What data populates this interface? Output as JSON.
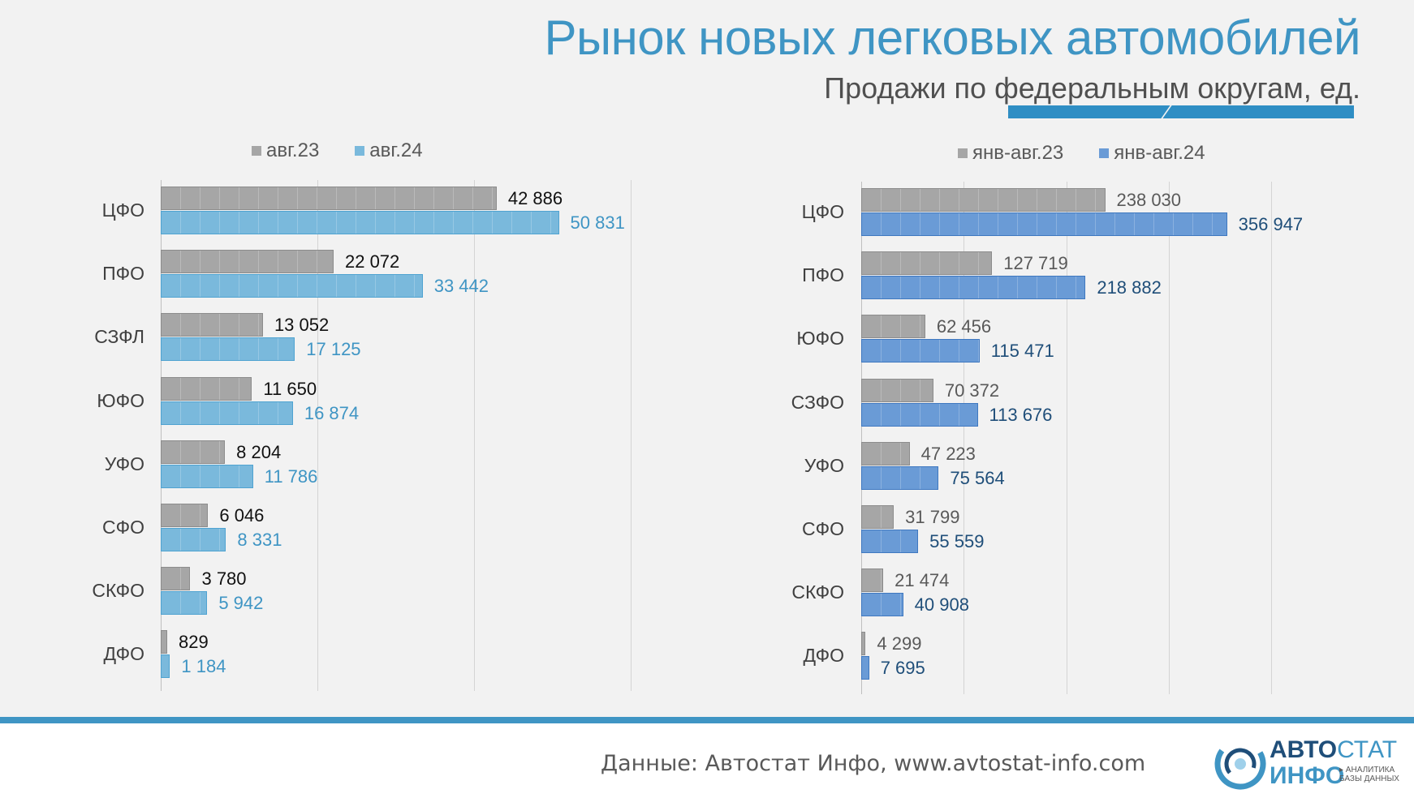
{
  "header": {
    "title": "Рынок новых легковых автомобилей",
    "subtitle": "Продажи по федеральным округам, ед."
  },
  "footer": {
    "source": "Данные: Автостат Инфо, www.avtostat-info.com",
    "logo_word1_bold": "АВТО",
    "logo_word1_light": "СТАТ",
    "logo_word2": "ИНФО",
    "logo_sub_line1": "▸ АНАЛИТИКА",
    "logo_sub_line2": "БАЗЫ ДАННЫХ"
  },
  "chart_data": [
    {
      "type": "bar",
      "orientation": "horizontal",
      "categories": [
        "ЦФО",
        "ПФО",
        "СЗФЛ",
        "ЮФО",
        "УФО",
        "СФО",
        "СКФО",
        "ДФО"
      ],
      "series": [
        {
          "name": "авг.23",
          "color": "#a6a6a6",
          "label_color": "#111111",
          "values": [
            42886,
            22072,
            13052,
            11650,
            8204,
            6046,
            3780,
            829
          ],
          "labels": [
            "42 886",
            "22 072",
            "13 052",
            "11 650",
            "8 204",
            "6 046",
            "3 780",
            "829"
          ]
        },
        {
          "name": "авг.24",
          "color": "#7ab9dc",
          "label_color": "#3f95c4",
          "values": [
            50831,
            33442,
            17125,
            16874,
            11786,
            8331,
            5942,
            1184
          ],
          "labels": [
            "50 831",
            "33 442",
            "17 125",
            "16 874",
            "11 786",
            "8 331",
            "5 942",
            "1 184"
          ]
        }
      ],
      "xlim": [
        0,
        60000
      ],
      "grid": true,
      "legend_position": "top"
    },
    {
      "type": "bar",
      "orientation": "horizontal",
      "categories": [
        "ЦФО",
        "ПФО",
        "ЮФО",
        "СЗФО",
        "УФО",
        "СФО",
        "СКФО",
        "ДФО"
      ],
      "series": [
        {
          "name": "янв-авг.23",
          "color": "#a6a6a6",
          "label_color": "#595959",
          "values": [
            238030,
            127719,
            62456,
            70372,
            47223,
            31799,
            21474,
            4299
          ],
          "labels": [
            "238 030",
            "127 719",
            "62 456",
            "70 372",
            "47 223",
            "31 799",
            "21 474",
            "4 299"
          ]
        },
        {
          "name": "янв-авг.24",
          "color": "#6a9bd6",
          "label_color": "#1f4e79",
          "values": [
            356947,
            218882,
            115471,
            113676,
            75564,
            55559,
            40908,
            7695
          ],
          "labels": [
            "356 947",
            "218 882",
            "115 471",
            "113 676",
            "75 564",
            "55 559",
            "40 908",
            "7 695"
          ]
        }
      ],
      "xlim": [
        0,
        400000
      ],
      "grid": true,
      "legend_position": "top"
    }
  ]
}
